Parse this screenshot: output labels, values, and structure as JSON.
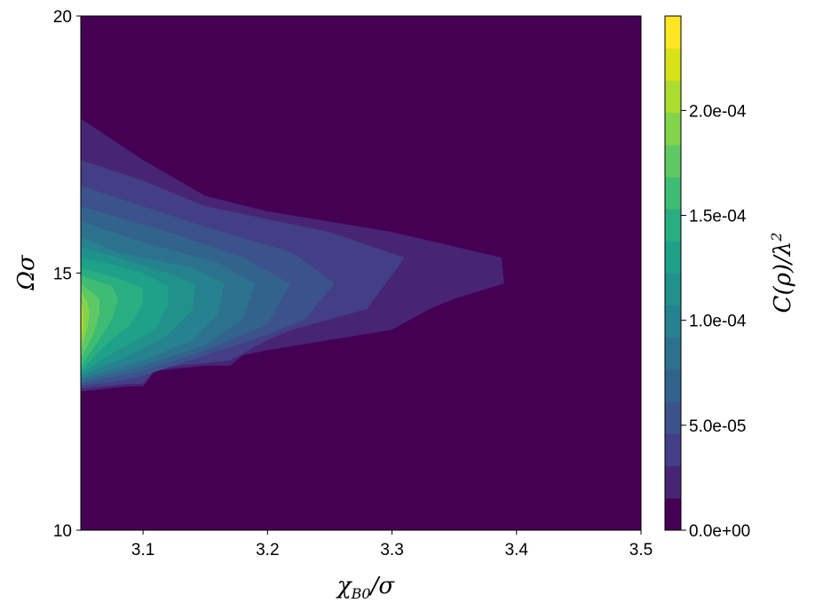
{
  "chart_data": {
    "type": "contourf",
    "xlabel": "χ_{B0}/σ",
    "ylabel": "Ωσ",
    "colorbar_label": "C(ρ)/λ²",
    "xlim": [
      3.05,
      3.5
    ],
    "ylim": [
      10,
      20
    ],
    "x_ticks": [
      3.1,
      3.2,
      3.3,
      3.4,
      3.5
    ],
    "x_tick_labels": [
      "3.1",
      "3.2",
      "3.3",
      "3.4",
      "3.5"
    ],
    "y_ticks": [
      10,
      15,
      20
    ],
    "y_tick_labels": [
      "10",
      "15",
      "20"
    ],
    "colorbar_range": [
      0,
      0.000245
    ],
    "colorbar_ticks": [
      0,
      5e-05,
      0.0001,
      0.00015,
      0.0002
    ],
    "colorbar_tick_labels": [
      "0.0e+00",
      "5.0e-05",
      "1.0e-04",
      "1.5e-04",
      "2.0e-04"
    ],
    "colormap": "viridis",
    "levels": 14,
    "contour_regions": [
      {
        "level": 1,
        "boundary": [
          [
            3.05,
            12.7
          ],
          [
            3.09,
            12.8
          ],
          [
            3.1,
            12.8
          ],
          [
            3.11,
            13.1
          ],
          [
            3.15,
            13.2
          ],
          [
            3.17,
            13.2
          ],
          [
            3.18,
            13.4
          ],
          [
            3.2,
            13.5
          ],
          [
            3.25,
            13.7
          ],
          [
            3.3,
            13.9
          ],
          [
            3.33,
            14.3
          ],
          [
            3.35,
            14.5
          ],
          [
            3.39,
            14.8
          ],
          [
            3.388,
            15.3
          ],
          [
            3.3,
            15.8
          ],
          [
            3.2,
            16.2
          ],
          [
            3.15,
            16.5
          ],
          [
            3.1,
            17.2
          ],
          [
            3.05,
            18.0
          ]
        ]
      },
      {
        "level": 2,
        "boundary": [
          [
            3.05,
            12.75
          ],
          [
            3.09,
            12.85
          ],
          [
            3.1,
            12.85
          ],
          [
            3.11,
            13.15
          ],
          [
            3.15,
            13.25
          ],
          [
            3.17,
            13.3
          ],
          [
            3.2,
            13.7
          ],
          [
            3.22,
            13.9
          ],
          [
            3.25,
            14.1
          ],
          [
            3.28,
            14.3
          ],
          [
            3.31,
            15.3
          ],
          [
            3.25,
            15.8
          ],
          [
            3.15,
            16.3
          ],
          [
            3.1,
            16.8
          ],
          [
            3.05,
            17.2
          ]
        ]
      },
      {
        "level": 3,
        "boundary": [
          [
            3.05,
            12.8
          ],
          [
            3.08,
            12.9
          ],
          [
            3.1,
            13.0
          ],
          [
            3.15,
            13.4
          ],
          [
            3.2,
            13.8
          ],
          [
            3.23,
            14.1
          ],
          [
            3.254,
            14.8
          ],
          [
            3.22,
            15.4
          ],
          [
            3.15,
            15.9
          ],
          [
            3.1,
            16.3
          ],
          [
            3.05,
            16.7
          ]
        ]
      },
      {
        "level": 4,
        "boundary": [
          [
            3.05,
            12.85
          ],
          [
            3.1,
            13.1
          ],
          [
            3.15,
            13.5
          ],
          [
            3.2,
            14.0
          ],
          [
            3.218,
            14.8
          ],
          [
            3.18,
            15.3
          ],
          [
            3.12,
            15.8
          ],
          [
            3.05,
            16.3
          ]
        ]
      },
      {
        "level": 5,
        "boundary": [
          [
            3.05,
            12.9
          ],
          [
            3.1,
            13.2
          ],
          [
            3.15,
            13.6
          ],
          [
            3.18,
            14.1
          ],
          [
            3.19,
            14.8
          ],
          [
            3.16,
            15.2
          ],
          [
            3.1,
            15.6
          ],
          [
            3.05,
            16.0
          ]
        ]
      },
      {
        "level": 6,
        "boundary": [
          [
            3.05,
            12.95
          ],
          [
            3.1,
            13.3
          ],
          [
            3.14,
            13.7
          ],
          [
            3.16,
            14.2
          ],
          [
            3.165,
            14.8
          ],
          [
            3.14,
            15.1
          ],
          [
            3.08,
            15.4
          ],
          [
            3.05,
            15.7
          ]
        ]
      },
      {
        "level": 7,
        "boundary": [
          [
            3.05,
            13.0
          ],
          [
            3.09,
            13.4
          ],
          [
            3.12,
            13.8
          ],
          [
            3.14,
            14.3
          ],
          [
            3.142,
            14.8
          ],
          [
            3.12,
            15.0
          ],
          [
            3.08,
            15.3
          ],
          [
            3.05,
            15.5
          ]
        ]
      },
      {
        "level": 8,
        "boundary": [
          [
            3.05,
            13.05
          ],
          [
            3.08,
            13.5
          ],
          [
            3.11,
            13.9
          ],
          [
            3.12,
            14.4
          ],
          [
            3.12,
            14.75
          ],
          [
            3.1,
            15.0
          ],
          [
            3.07,
            15.2
          ],
          [
            3.05,
            15.3
          ]
        ]
      },
      {
        "level": 9,
        "boundary": [
          [
            3.05,
            13.1
          ],
          [
            3.07,
            13.6
          ],
          [
            3.09,
            14.0
          ],
          [
            3.1,
            14.4
          ],
          [
            3.1,
            14.7
          ],
          [
            3.08,
            14.9
          ],
          [
            3.05,
            15.1
          ]
        ]
      },
      {
        "level": 10,
        "boundary": [
          [
            3.05,
            13.2
          ],
          [
            3.065,
            13.7
          ],
          [
            3.075,
            14.1
          ],
          [
            3.08,
            14.5
          ],
          [
            3.075,
            14.75
          ],
          [
            3.05,
            14.95
          ]
        ]
      },
      {
        "level": 11,
        "boundary": [
          [
            3.05,
            13.35
          ],
          [
            3.06,
            13.8
          ],
          [
            3.065,
            14.2
          ],
          [
            3.065,
            14.5
          ],
          [
            3.05,
            14.8
          ]
        ]
      },
      {
        "level": 12,
        "boundary": [
          [
            3.05,
            13.5
          ],
          [
            3.055,
            13.9
          ],
          [
            3.057,
            14.2
          ],
          [
            3.055,
            14.45
          ],
          [
            3.05,
            14.65
          ]
        ]
      },
      {
        "level": 13,
        "boundary": [
          [
            3.05,
            13.6
          ],
          [
            3.052,
            13.95
          ],
          [
            3.052,
            14.25
          ],
          [
            3.05,
            14.45
          ]
        ]
      }
    ]
  },
  "colors": {
    "levels": [
      "#440154",
      "#482475",
      "#433e85",
      "#3b528b",
      "#33638d",
      "#2c728e",
      "#26828e",
      "#21918c",
      "#1fa088",
      "#28ae80",
      "#3fbc73",
      "#5ec962",
      "#84d44b",
      "#addc30",
      "#d8e219",
      "#fde725"
    ]
  }
}
